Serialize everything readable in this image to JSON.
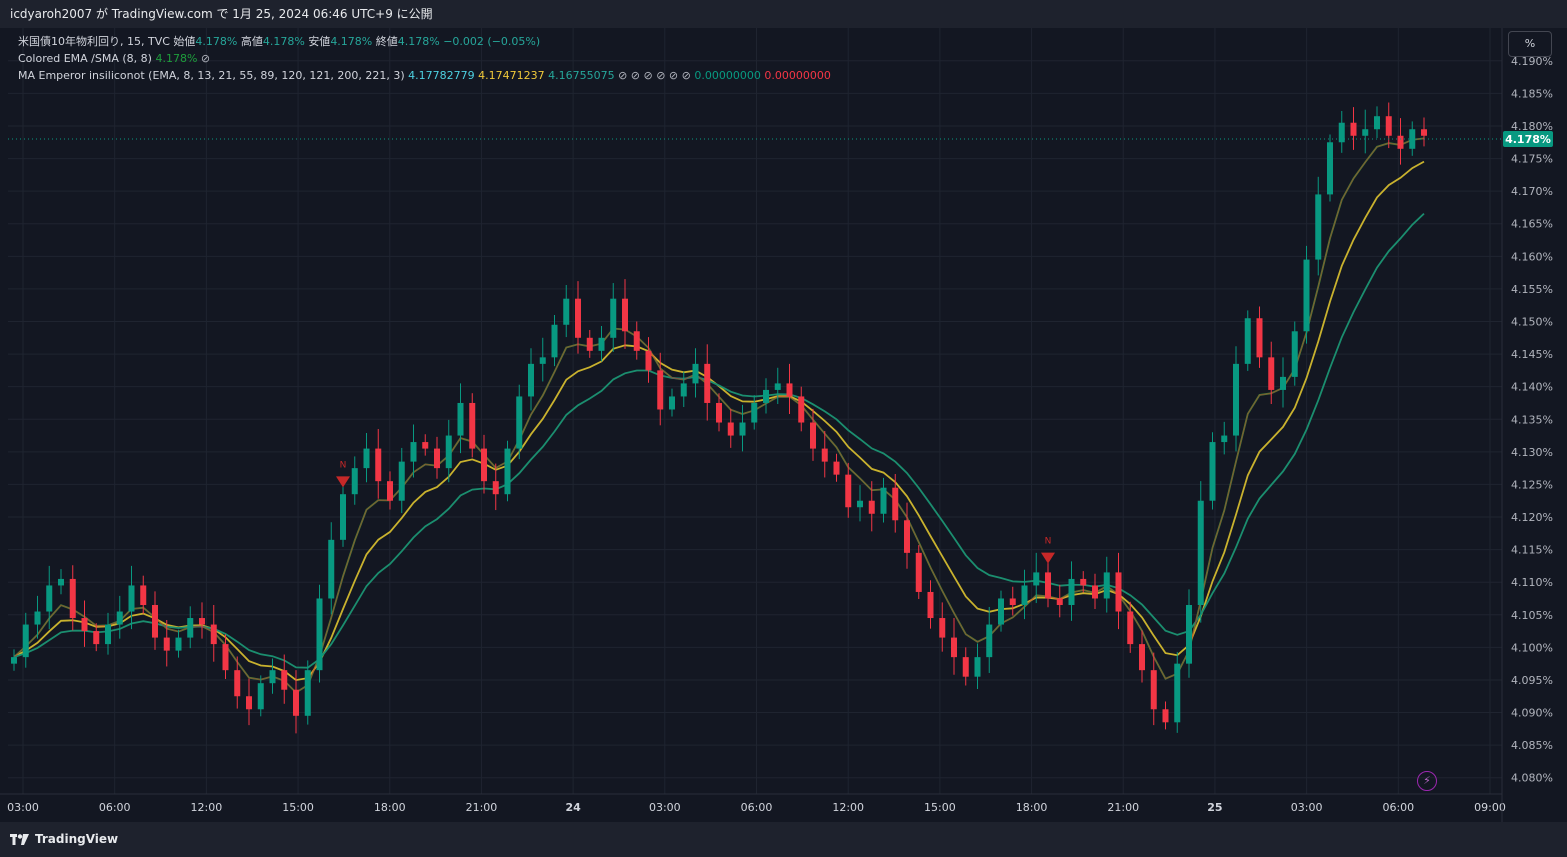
{
  "header": {
    "title": "icdyaroh2007 が TradingView.com で 1月 25, 2024 06:46 UTC+9 に公開"
  },
  "legend": {
    "symbol": "米国債10年物利回り, 15, TVC",
    "open_label": "始値",
    "open": "4.178%",
    "high_label": "高値",
    "high": "4.178%",
    "low_label": "安値",
    "low": "4.178%",
    "close_label": "終値",
    "close": "4.178%",
    "change": "−0.002 (−0.05%)",
    "ema_label": "Colored EMA /SMA (8, 8)",
    "ema_value": "4.178%",
    "ema_icon": "⊘",
    "ma_label": "MA Emperor insiliconot (EMA, 8, 13, 21, 55, 89, 120, 121, 200, 221, 3)",
    "ma_v1": "4.17782779",
    "ma_v2": "4.17471237",
    "ma_v3": "4.16755075",
    "ma_icons": "⊘ ⊘ ⊘ ⊘ ⊘ ⊘",
    "ma_v4": "0.00000000",
    "ma_v5": "0.00000000"
  },
  "scale_button": "%",
  "footer": {
    "brand": "TradingView"
  },
  "chart_data": {
    "type": "candlestick",
    "symbol": "米国債10年物利回り, 15, TVC",
    "last_price_label": "4.178%",
    "last_price": 4.178,
    "y_range": [
      4.0775,
      4.1935
    ],
    "y_ticks": [
      "4.080%",
      "4.085%",
      "4.090%",
      "4.095%",
      "4.100%",
      "4.105%",
      "4.110%",
      "4.115%",
      "4.120%",
      "4.125%",
      "4.130%",
      "4.135%",
      "4.140%",
      "4.145%",
      "4.150%",
      "4.155%",
      "4.160%",
      "4.165%",
      "4.170%",
      "4.175%",
      "4.180%",
      "4.185%",
      "4.190%"
    ],
    "x_ticks": [
      "03:00",
      "06:00",
      "12:00",
      "15:00",
      "18:00",
      "21:00",
      "24",
      "03:00",
      "06:00",
      "12:00",
      "15:00",
      "18:00",
      "21:00",
      "25",
      "03:00",
      "06:00",
      "09:00"
    ],
    "x_tick_bold": [
      false,
      false,
      false,
      false,
      false,
      false,
      true,
      false,
      false,
      false,
      false,
      false,
      false,
      true,
      false,
      false,
      false
    ],
    "close_path": [
      4.0985,
      4.1035,
      4.1055,
      4.1095,
      4.1105,
      4.1045,
      4.1025,
      4.1005,
      4.1035,
      4.1055,
      4.1095,
      4.1065,
      4.1015,
      4.0995,
      4.1015,
      4.1045,
      4.1035,
      4.1005,
      4.0965,
      4.0925,
      4.0905,
      4.0945,
      4.0965,
      4.0935,
      4.0895,
      4.0965,
      4.1075,
      4.1165,
      4.1235,
      4.1275,
      4.1305,
      4.1255,
      4.1225,
      4.1285,
      4.1315,
      4.1305,
      4.1275,
      4.1325,
      4.1375,
      4.1305,
      4.1255,
      4.1235,
      4.1305,
      4.1385,
      4.1435,
      4.1445,
      4.1495,
      4.1535,
      4.1475,
      4.1455,
      4.1475,
      4.1535,
      4.1485,
      4.1455,
      4.1425,
      4.1365,
      4.1385,
      4.1405,
      4.1435,
      4.1375,
      4.1345,
      4.1325,
      4.1345,
      4.1375,
      4.1395,
      4.1405,
      4.1385,
      4.1345,
      4.1305,
      4.1285,
      4.1265,
      4.1215,
      4.1225,
      4.1205,
      4.1245,
      4.1195,
      4.1145,
      4.1085,
      4.1045,
      4.1015,
      4.0985,
      4.0955,
      4.0985,
      4.1035,
      4.1075,
      4.1065,
      4.1095,
      4.1115,
      4.1075,
      4.1065,
      4.1105,
      4.1095,
      4.1075,
      4.1115,
      4.1055,
      4.1005,
      4.0965,
      4.0905,
      4.0885,
      4.0975,
      4.1065,
      4.1225,
      4.1315,
      4.1325,
      4.1435,
      4.1505,
      4.1445,
      4.1395,
      4.1415,
      4.1485,
      4.1595,
      4.1695,
      4.1775,
      4.1805,
      4.1785,
      4.1795,
      4.1815,
      4.1785,
      4.1765,
      4.1795,
      4.1785
    ],
    "series": [
      {
        "name": "4.17782779",
        "color": "#1e9e3c"
      },
      {
        "name": "4.17471237",
        "color": "#c9b22e"
      },
      {
        "name": "4.16755075",
        "color": "#1b8e6f"
      }
    ],
    "up_color": "#089981",
    "down_color": "#f23645",
    "markers": [
      {
        "text": "N",
        "type": "sell",
        "index": 28
      },
      {
        "text": "N",
        "type": "sell",
        "index": 88
      }
    ]
  }
}
